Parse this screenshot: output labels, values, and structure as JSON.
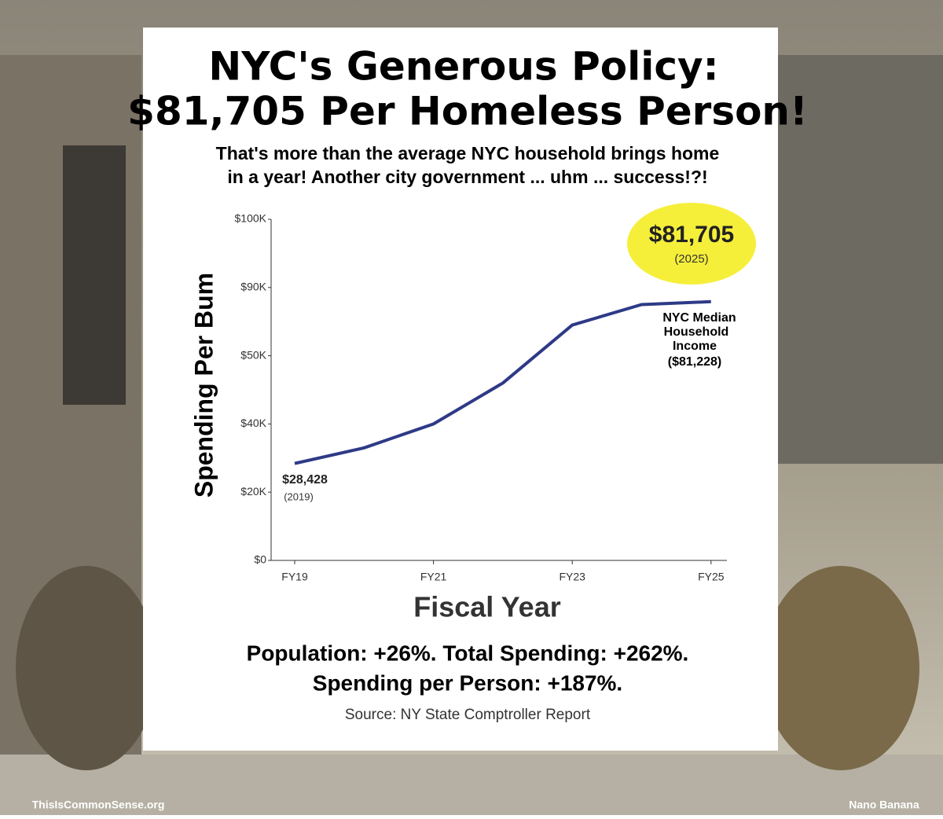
{
  "chart_data": {
    "type": "line",
    "title": [
      "NYC's Generous Policy:",
      "$81,705 Per Homeless Person!"
    ],
    "subtitle": [
      "That's more than the average NYC household brings home",
      "in a year! Another city government ... uhm ... success!?!"
    ],
    "x_label": "Fiscal Year",
    "y_label": "Spending Per Bum",
    "categories": [
      "FY19",
      null,
      "FY21",
      null,
      "FY23",
      null,
      "FY25"
    ],
    "series": [
      {
        "color": "#2e3a87",
        "values": [
          28428,
          33000,
          40000,
          46000,
          68000,
          80000,
          81705
        ],
        "value_labels": [
          "$28,428",
          null,
          null,
          null,
          null,
          null,
          "$81,705"
        ]
      }
    ],
    "ylim": [
      0,
      100000
    ],
    "yticks": [
      {
        "value": 0,
        "label": "$0"
      },
      {
        "value": 20000,
        "label": "$20K"
      },
      {
        "value": 40000,
        "label": "$40K"
      },
      {
        "value": 50000,
        "label": "$50K"
      },
      {
        "value": 90000,
        "label": "$90K"
      },
      {
        "value": 100000,
        "label": "$100K"
      }
    ],
    "annotations": [
      "(2019)",
      "(2025)",
      "NYC Median",
      "Household",
      "Income",
      "($81,228)"
    ],
    "footer": [
      "Population: +26%. Total Spending: +262%.",
      "Spending per Person: +187%.",
      "Source: NY State Comptroller Report"
    ],
    "credits": [
      "ThisIsCommonSense.org",
      "Nano Banana"
    ]
  }
}
